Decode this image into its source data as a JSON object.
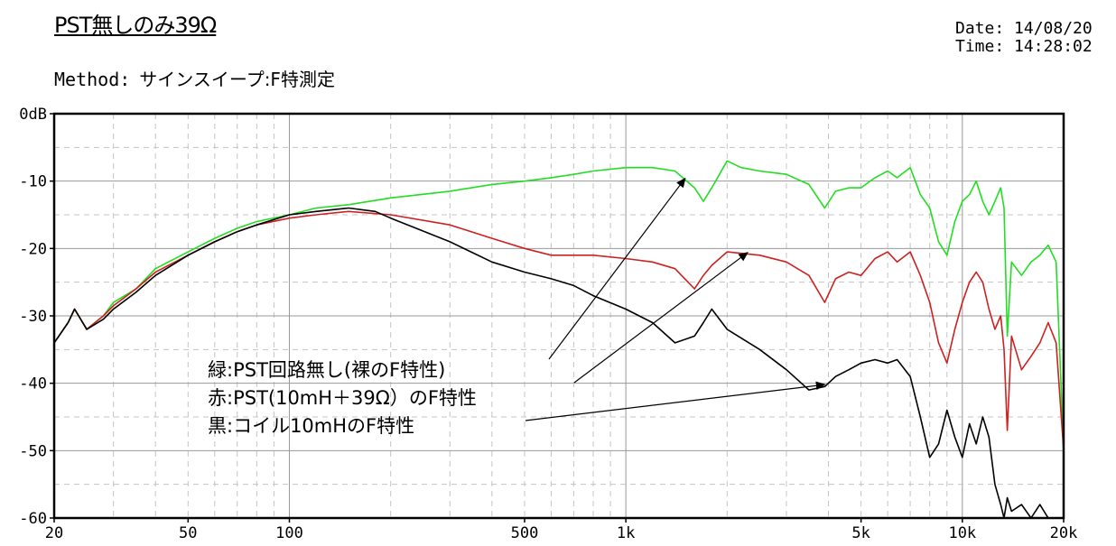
{
  "header": {
    "title": "PST無しのみ39Ω",
    "method_label": "Method:",
    "method_value": "サインスイープ:F特測定",
    "date": "Date: 14/08/20",
    "time": "Time: 14:28:02"
  },
  "chart_data": {
    "type": "line",
    "title": "",
    "xlabel": "",
    "ylabel": "",
    "xscale": "log",
    "xlim": [
      20,
      20000
    ],
    "ylim": [
      -60,
      0
    ],
    "grid": true,
    "x_tick_labels": [
      "20",
      "50",
      "100",
      "500",
      "1k",
      "5k",
      "10k",
      "20k"
    ],
    "x_tick_values": [
      20,
      50,
      100,
      500,
      1000,
      5000,
      10000,
      20000
    ],
    "y_tick_labels": [
      "0dB",
      "-10",
      "-20",
      "-30",
      "-40",
      "-50",
      "-60"
    ],
    "y_tick_values": [
      0,
      -10,
      -20,
      -30,
      -40,
      -50,
      -60
    ],
    "series": [
      {
        "color": "#22dd22",
        "x": [
          20,
          22,
          23,
          25,
          28,
          30,
          35,
          40,
          50,
          60,
          70,
          80,
          100,
          120,
          150,
          200,
          300,
          400,
          500,
          600,
          700,
          800,
          1000,
          1200,
          1400,
          1600,
          1700,
          1800,
          2000,
          2200,
          2500,
          3000,
          3500,
          3900,
          4200,
          4600,
          5000,
          5500,
          6000,
          6400,
          7000,
          7500,
          8000,
          8500,
          9000,
          9500,
          10000,
          10500,
          11000,
          11500,
          12000,
          12500,
          13000,
          13300,
          13600,
          14000,
          15000,
          16000,
          17000,
          18000,
          19000,
          20000
        ],
        "y": [
          -34,
          -31,
          -29,
          -32,
          -30,
          -28,
          -26,
          -23,
          -20.5,
          -18.5,
          -17,
          -16,
          -15,
          -14,
          -13.5,
          -12.5,
          -11.5,
          -10.5,
          -10,
          -9.5,
          -9,
          -8.5,
          -8,
          -8,
          -8.5,
          -11,
          -13,
          -11,
          -7,
          -8,
          -8.5,
          -9,
          -10.5,
          -14,
          -11.5,
          -11,
          -11,
          -9.5,
          -8.5,
          -9.5,
          -8,
          -12,
          -14,
          -19,
          -21,
          -16,
          -13,
          -12,
          -10,
          -13,
          -15,
          -13,
          -11,
          -14,
          -33,
          -22,
          -24,
          -22,
          -21,
          -19.5,
          -22,
          -50
        ],
        "name": ""
      },
      {
        "color": "#cc2222",
        "x": [
          20,
          22,
          23,
          25,
          28,
          30,
          35,
          40,
          50,
          60,
          70,
          80,
          100,
          120,
          150,
          200,
          300,
          400,
          500,
          600,
          700,
          800,
          1000,
          1200,
          1400,
          1600,
          1700,
          1800,
          2000,
          2500,
          3000,
          3500,
          3900,
          4200,
          4600,
          5000,
          5500,
          6000,
          6400,
          7000,
          7500,
          8000,
          8500,
          9000,
          9500,
          10000,
          10500,
          11000,
          11500,
          12000,
          12500,
          13000,
          13300,
          13600,
          14000,
          15000,
          16000,
          17000,
          18000,
          19000,
          20000
        ],
        "y": [
          -34,
          -31,
          -29,
          -32,
          -30,
          -28.5,
          -26,
          -23.5,
          -21,
          -19,
          -17.5,
          -16.5,
          -15.5,
          -15,
          -14.5,
          -15,
          -16.5,
          -18.5,
          -20,
          -21,
          -21,
          -21,
          -21.5,
          -22,
          -23,
          -26,
          -24,
          -22.5,
          -20.5,
          -21,
          -22,
          -24,
          -28,
          -24.5,
          -23.5,
          -24,
          -21.5,
          -20.5,
          -22,
          -20.5,
          -24,
          -28,
          -34,
          -37,
          -32,
          -28,
          -25,
          -23.5,
          -25,
          -29,
          -32,
          -30,
          -35,
          -47,
          -33,
          -38,
          -36,
          -34,
          -31,
          -34,
          -50
        ],
        "name": ""
      },
      {
        "color": "#000000",
        "x": [
          20,
          22,
          23,
          25,
          28,
          30,
          35,
          40,
          50,
          60,
          70,
          80,
          100,
          120,
          150,
          180,
          200,
          300,
          400,
          500,
          600,
          700,
          800,
          1000,
          1200,
          1400,
          1600,
          1700,
          1800,
          2000,
          2500,
          3000,
          3500,
          3900,
          4200,
          4600,
          5000,
          5500,
          6000,
          6400,
          7000,
          7500,
          8000,
          8500,
          9000,
          9500,
          10000,
          10500,
          11000,
          11500,
          12000,
          12500,
          13000,
          13300,
          13600,
          14000,
          15000,
          16000,
          17000,
          18000,
          19000,
          20000
        ],
        "y": [
          -34,
          -31,
          -29,
          -32,
          -30.5,
          -29,
          -26.5,
          -24,
          -21,
          -19,
          -17.5,
          -16.5,
          -15,
          -14.5,
          -14,
          -14.5,
          -15.5,
          -19,
          -22,
          -23.5,
          -24.5,
          -25.5,
          -27,
          -29,
          -31,
          -34,
          -33,
          -31,
          -29,
          -32,
          -35,
          -38,
          -41,
          -40.5,
          -39,
          -38,
          -37,
          -36.5,
          -37,
          -36.5,
          -39,
          -45,
          -51,
          -49,
          -44,
          -48,
          -51,
          -46,
          -49,
          -45,
          -48,
          -55,
          -58,
          -60,
          -57,
          -59,
          -58,
          -60,
          -58,
          -60,
          -60,
          -60
        ],
        "name": ""
      }
    ],
    "annotations": [
      "緑:PST回路無し(裸のF特性)",
      "赤:PST(10mH＋39Ω）のF特性",
      "黒:コイル10mHのF特性"
    ]
  }
}
